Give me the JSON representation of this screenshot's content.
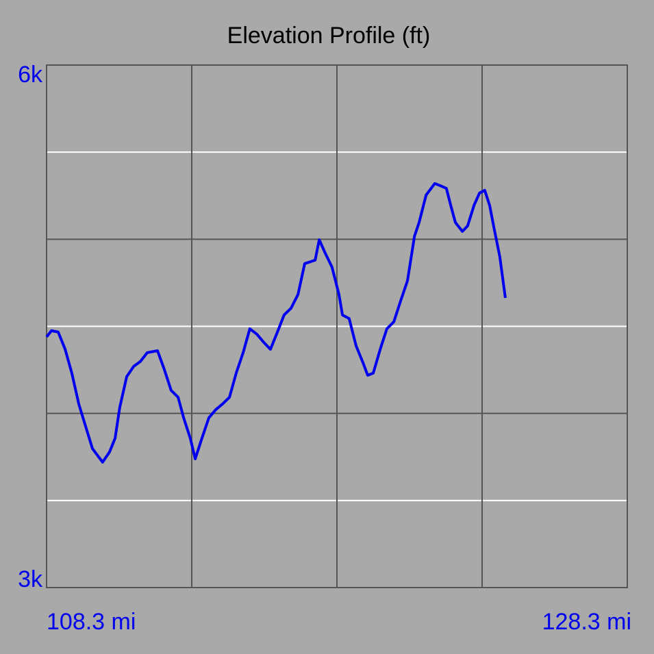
{
  "chart_data": {
    "type": "line",
    "title": "Elevation Profile (ft)",
    "x": [
      108.3,
      108.47,
      108.7,
      108.94,
      109.17,
      109.41,
      109.64,
      109.88,
      110.23,
      110.47,
      110.66,
      110.82,
      111.06,
      111.3,
      111.53,
      111.77,
      112.12,
      112.36,
      112.59,
      112.83,
      113.02,
      113.25,
      113.42,
      113.65,
      113.89,
      114.13,
      114.36,
      114.6,
      114.83,
      115.07,
      115.3,
      115.54,
      115.78,
      116.01,
      116.25,
      116.48,
      116.72,
      116.96,
      117.19,
      117.55,
      117.69,
      117.9,
      118.13,
      118.37,
      118.49,
      118.72,
      118.96,
      119.2,
      119.36,
      119.55,
      119.79,
      120.02,
      120.26,
      120.49,
      120.73,
      120.97,
      121.13,
      121.37,
      121.67,
      121.91,
      122.07,
      122.22,
      122.38,
      122.62,
      122.8,
      123.02,
      123.21,
      123.39,
      123.56,
      123.72,
      123.91,
      124.1
    ],
    "series": [
      {
        "color": "#0000ee",
        "values": [
          4439,
          4475,
          4467,
          4368,
          4231,
          4054,
          3928,
          3798,
          3720,
          3779,
          3857,
          4034,
          4211,
          4270,
          4298,
          4349,
          4360,
          4250,
          4132,
          4093,
          3975,
          3857,
          3739,
          3857,
          3975,
          4022,
          4054,
          4093,
          4231,
          4349,
          4486,
          4455,
          4408,
          4368,
          4467,
          4565,
          4604,
          4683,
          4860,
          4880,
          4997,
          4919,
          4840,
          4683,
          4565,
          4545,
          4388,
          4290,
          4219,
          4231,
          4368,
          4486,
          4526,
          4644,
          4762,
          5017,
          5096,
          5253,
          5320,
          5304,
          5292,
          5194,
          5096,
          5045,
          5076,
          5194,
          5265,
          5281,
          5194,
          5056,
          4899,
          4663
        ]
      }
    ],
    "xlim": [
      108.3,
      128.3
    ],
    "ylim": [
      3000,
      6000
    ],
    "xticks": [
      {
        "value": 108.3,
        "label": "108.3 mi"
      },
      {
        "value": 128.3,
        "label": "128.3 mi"
      }
    ],
    "yticks": [
      {
        "value": 3000,
        "label": "3k"
      },
      {
        "value": 6000,
        "label": "6k"
      }
    ],
    "ygrid": [
      3500,
      4000,
      4500,
      5000,
      5500
    ],
    "ygrid_colors": [
      "#ffffff",
      "#555555",
      "#ffffff",
      "#555555",
      "#ffffff"
    ],
    "xgrid": [
      113.3,
      118.3,
      123.3
    ],
    "xgrid_color": "#555555",
    "label_color": "#0000ee"
  }
}
